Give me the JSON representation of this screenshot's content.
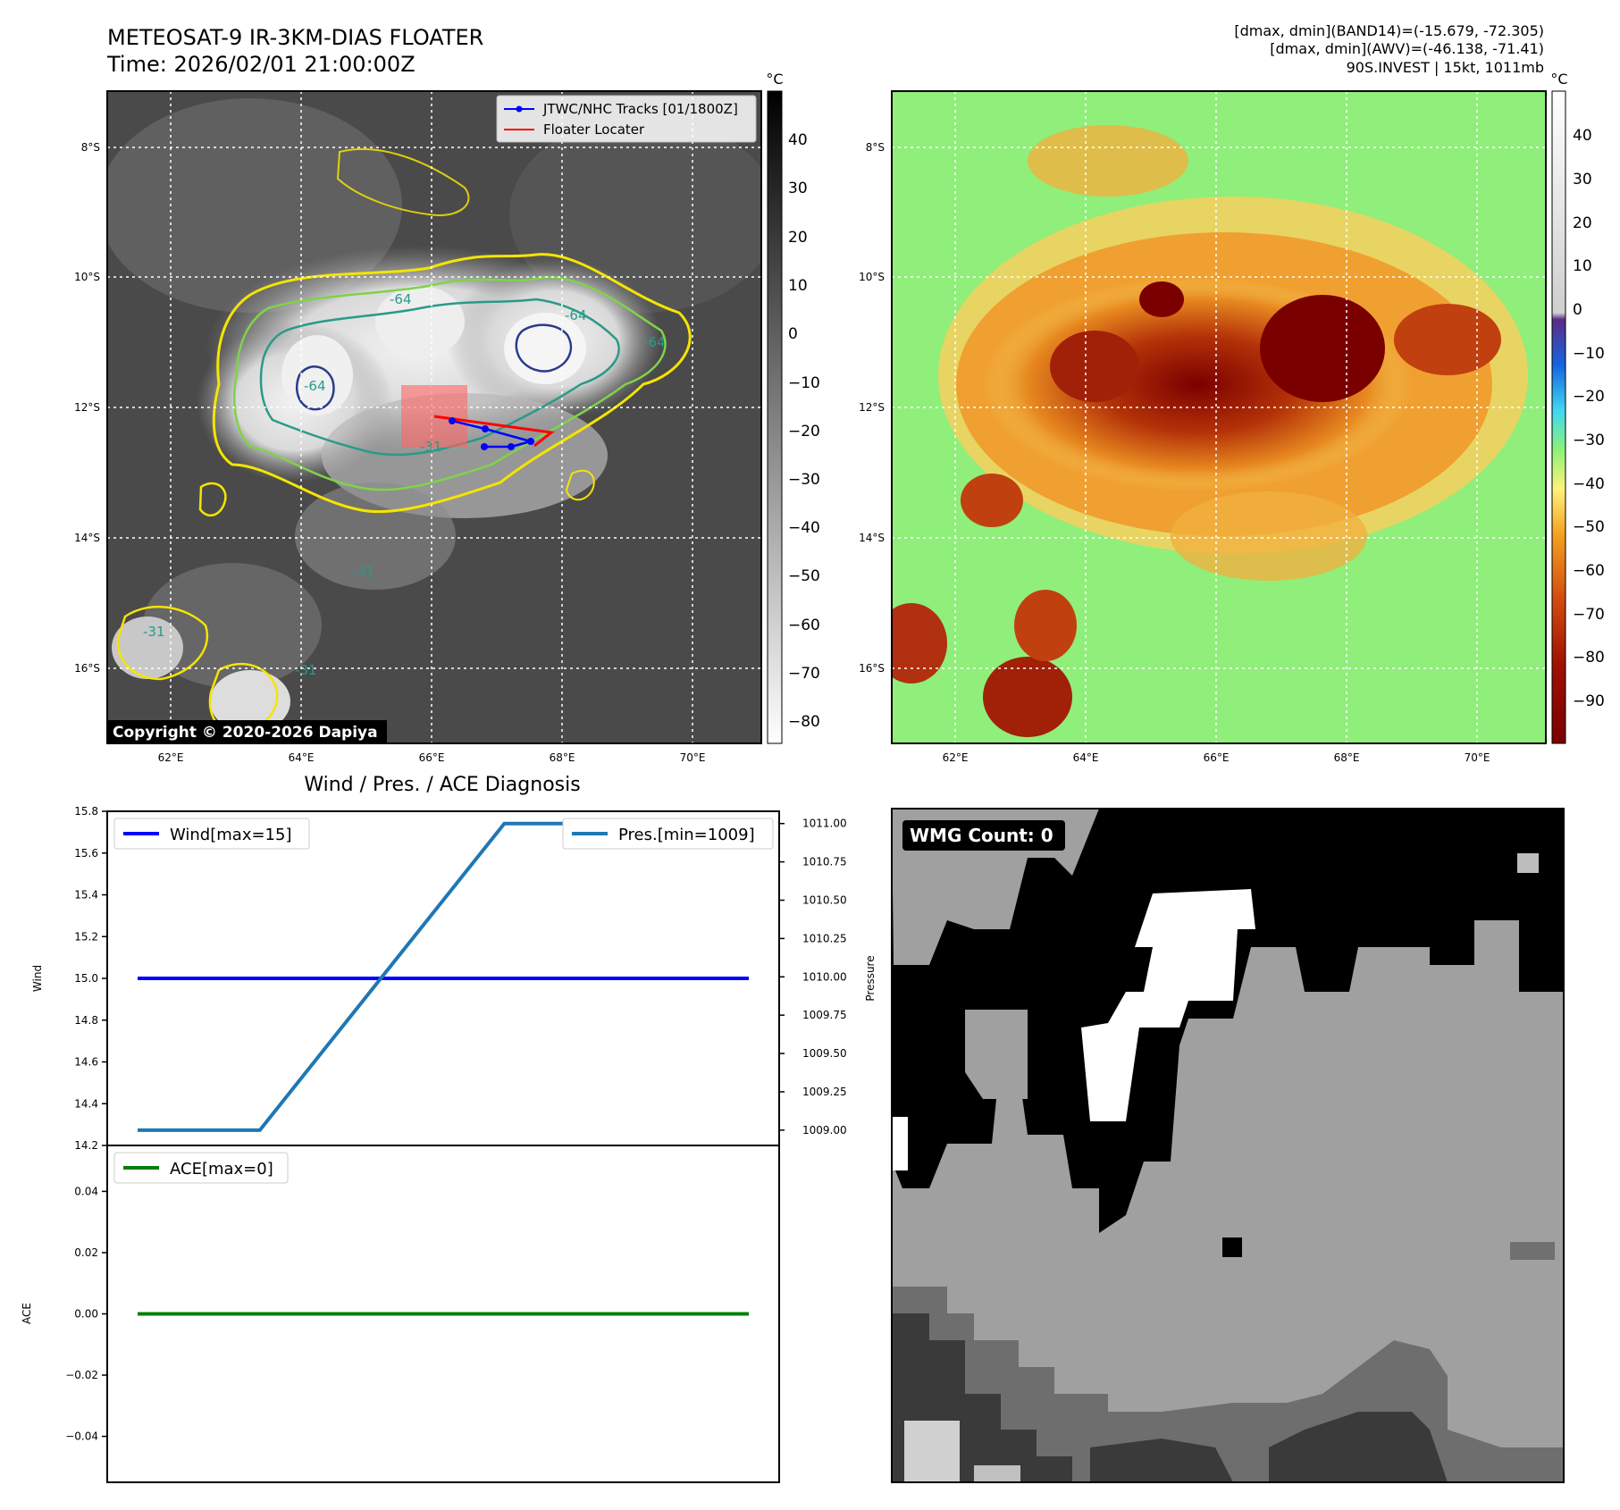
{
  "header": {
    "title_line1": "METEOSAT-9 IR-3KM-DIAS FLOATER",
    "title_line2": "Time: 2026/02/01 21:00:00Z",
    "info_line1": "[dmax, dmin](BAND14)=(-15.679, -72.305)",
    "info_line2": "[dmax, dmin](AWV)=(-46.138, -71.41)",
    "info_line3": "90S.INVEST | 15kt, 1011mb"
  },
  "maps": {
    "lat_labels": [
      "8°S",
      "10°S",
      "12°S",
      "14°S",
      "16°S"
    ],
    "lon_labels": [
      "62°E",
      "64°E",
      "66°E",
      "68°E",
      "70°E"
    ],
    "legend": {
      "tracks": "JTWC/NHC Tracks [01/1800Z]",
      "locater": "Floater Locater"
    },
    "copyright": "Copyright © 2020-2026 Dapiya",
    "contour_labels": [
      "-64",
      "-64",
      "-64",
      "-64",
      "-31",
      "-31",
      "-31",
      "-31"
    ],
    "colorbar_unit": "°C",
    "colorbar1_ticks": [
      "40",
      "30",
      "20",
      "10",
      "0",
      "−10",
      "−20",
      "−30",
      "−40",
      "−50",
      "−60",
      "−70",
      "−80"
    ],
    "colorbar2_ticks": [
      "40",
      "30",
      "20",
      "10",
      "0",
      "−10",
      "−20",
      "−30",
      "−40",
      "−50",
      "−60",
      "−70",
      "−80",
      "−90"
    ],
    "track_color": "#0000ff",
    "locater_color": "#ff0000"
  },
  "diag": {
    "title": "Wind / Pres. / ACE Diagnosis",
    "wind_legend": "Wind[max=15]",
    "pres_legend": "Pres.[min=1009]",
    "ace_legend": "ACE[max=0]",
    "wind_ylabel": "Wind",
    "pres_ylabel": "Pressure",
    "ace_ylabel": "ACE",
    "wind_ticks": [
      "15.8",
      "15.6",
      "15.4",
      "15.2",
      "15.0",
      "14.8",
      "14.6",
      "14.4",
      "14.2"
    ],
    "pres_ticks": [
      "1011.00",
      "1010.75",
      "1010.50",
      "1010.25",
      "1010.00",
      "1009.75",
      "1009.50",
      "1009.25",
      "1009.00"
    ],
    "ace_ticks": [
      "0.04",
      "0.02",
      "0.00",
      "−0.02",
      "−0.04"
    ]
  },
  "wmg": {
    "label": "WMG Count: 0"
  },
  "chart_data": [
    {
      "type": "line",
      "title": "Wind / Pres. / ACE Diagnosis",
      "x": [
        0,
        1,
        2,
        3,
        4,
        5
      ],
      "series": [
        {
          "name": "Wind[max=15]",
          "axis": "left",
          "color": "#0000ff",
          "values": [
            15,
            15,
            15,
            15,
            15,
            15
          ]
        },
        {
          "name": "Pres.[min=1009]",
          "axis": "right",
          "color": "#1f77b4",
          "values": [
            1009,
            1009,
            1010,
            1011,
            1011,
            1011
          ]
        }
      ],
      "ylim_left": [
        14.2,
        15.8
      ],
      "ylim_right": [
        1008.9,
        1011.08
      ],
      "ylabel_left": "Wind",
      "ylabel_right": "Pressure",
      "grid": false,
      "legend": "top-left / top-right"
    },
    {
      "type": "line",
      "x": [
        0,
        1,
        2,
        3,
        4,
        5
      ],
      "series": [
        {
          "name": "ACE[max=0]",
          "color": "#008000",
          "values": [
            0,
            0,
            0,
            0,
            0,
            0
          ]
        }
      ],
      "ylim": [
        -0.055,
        0.055
      ],
      "ylabel": "ACE",
      "grid": false,
      "legend": "top-left"
    }
  ]
}
